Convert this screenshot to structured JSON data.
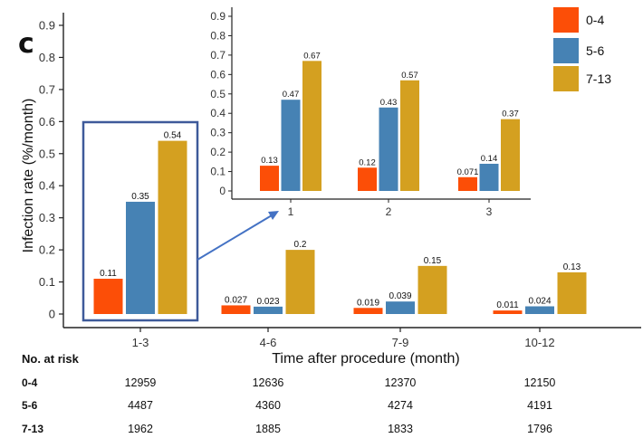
{
  "panel_label": "c",
  "chart_data": [
    {
      "type": "bar",
      "id": "main",
      "categories": [
        "1-3",
        "4-6",
        "7-9",
        "10-12"
      ],
      "series": [
        {
          "name": "0-4",
          "color": "#fc4e07",
          "values": [
            0.11,
            0.027,
            0.019,
            0.011
          ],
          "labels": [
            "0.11",
            "0.027",
            "0.019",
            "0.011"
          ]
        },
        {
          "name": "5-6",
          "color": "#4682b4",
          "values": [
            0.35,
            0.023,
            0.039,
            0.024
          ],
          "labels": [
            "0.35",
            "0.023",
            "0.039",
            "0.024"
          ]
        },
        {
          "name": "7-13",
          "color": "#d4a020",
          "values": [
            0.54,
            0.2,
            0.15,
            0.13
          ],
          "labels": [
            "0.54",
            "0.2",
            "0.15",
            "0.13"
          ]
        }
      ],
      "xlabel": "Time after procedure (month)",
      "ylabel": "Infection rate (%/month)",
      "ylim": [
        0,
        0.9
      ],
      "yticks": [
        "0",
        "0.1",
        "0.2",
        "0.3",
        "0.4",
        "0.5",
        "0.6",
        "0.7",
        "0.8",
        "0.9"
      ],
      "legend": "top-right",
      "highlight_category": "1-3"
    },
    {
      "type": "bar",
      "id": "inset",
      "categories": [
        "1",
        "2",
        "3"
      ],
      "series": [
        {
          "name": "0-4",
          "color": "#fc4e07",
          "values": [
            0.13,
            0.12,
            0.071
          ],
          "labels": [
            "0.13",
            "0.12",
            "0.071"
          ]
        },
        {
          "name": "5-6",
          "color": "#4682b4",
          "values": [
            0.47,
            0.43,
            0.14
          ],
          "labels": [
            "0.47",
            "0.43",
            "0.14"
          ]
        },
        {
          "name": "7-13",
          "color": "#d4a020",
          "values": [
            0.67,
            0.57,
            0.37
          ],
          "labels": [
            "0.67",
            "0.57",
            "0.37"
          ]
        }
      ],
      "ylim": [
        0,
        0.9
      ],
      "yticks": [
        "0",
        "0.1",
        "0.2",
        "0.3",
        "0.4",
        "0.5",
        "0.6",
        "0.7",
        "0.8",
        "0.9"
      ]
    }
  ],
  "risk_table": {
    "title": "No. at risk",
    "rows": [
      {
        "group": "0-4",
        "values": [
          "12959",
          "12636",
          "12370",
          "12150"
        ]
      },
      {
        "group": "5-6",
        "values": [
          "4487",
          "4360",
          "4274",
          "4191"
        ]
      },
      {
        "group": "7-13",
        "values": [
          "1962",
          "1885",
          "1833",
          "1796"
        ]
      }
    ]
  }
}
